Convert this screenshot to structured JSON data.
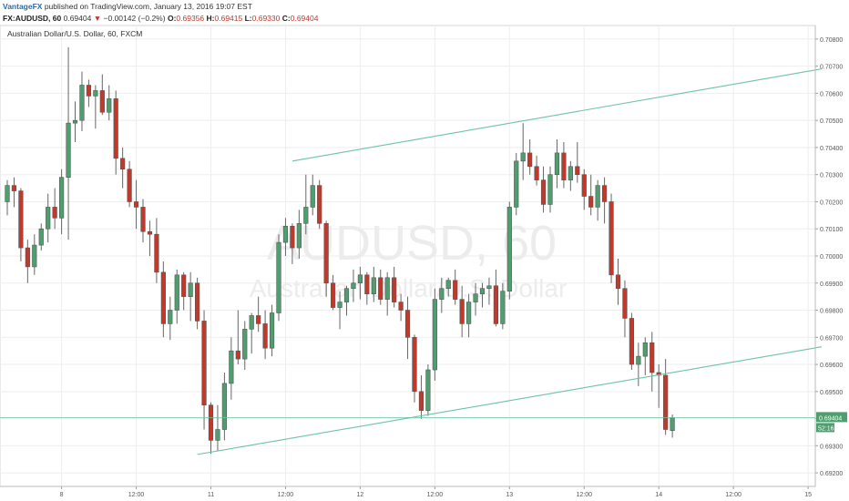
{
  "header": {
    "publisher": "VantageFX",
    "published_text": " published on TradingView.com, January 13, 2016 19:07 EST",
    "symbol": "FX:AUDUSD, 60",
    "last": "0.69404",
    "change_arrow": "▼",
    "change": "−0.00142 (−0.2%)",
    "o_label": "O:",
    "o_value": "0.69356",
    "h_label": "H:",
    "h_value": "0.69415",
    "l_label": "L:",
    "l_value": "0.69330",
    "c_label": "C:",
    "c_value": "0.69404"
  },
  "chart_data": {
    "type": "candlestick",
    "title": "Australian Dollar/U.S. Dollar, 60, FXCM",
    "watermark": {
      "symbol": "AUDUSD, 60",
      "name": "Australian Dollar/U.S. Dollar"
    },
    "ylim": [
      0.6915,
      0.7085
    ],
    "y_ticks": [
      "0.69200",
      "0.69300",
      "0.69400",
      "0.69500",
      "0.69600",
      "0.69700",
      "0.69800",
      "0.69900",
      "0.70000",
      "0.70100",
      "0.70200",
      "0.70300",
      "0.70400",
      "0.70500",
      "0.70600",
      "0.70700",
      "0.70800"
    ],
    "x_ticks": [
      {
        "label": "8",
        "index": 8
      },
      {
        "label": "12:00",
        "index": 19
      },
      {
        "label": "11",
        "index": 30
      },
      {
        "label": "12:00",
        "index": 41
      },
      {
        "label": "12",
        "index": 52
      },
      {
        "label": "12:00",
        "index": 63
      },
      {
        "label": "13",
        "index": 74
      },
      {
        "label": "12:00",
        "index": 85
      },
      {
        "label": "14",
        "index": 96
      },
      {
        "label": "12:00",
        "index": 107
      },
      {
        "label": "15",
        "index": 118
      }
    ],
    "last_price": "0.69404",
    "countdown": "52:16",
    "bull_color": "#4f9e6f",
    "bear_color": "#c0392b",
    "channel_color": "#6cc3a4",
    "trendlines": [
      {
        "from": [
          42,
          0.7035
        ],
        "to": [
          120,
          0.7069
        ]
      },
      {
        "from": [
          28,
          0.69268
        ],
        "to": [
          120,
          0.69665
        ]
      }
    ],
    "candles": [
      [
        0.702,
        0.7028,
        0.7015,
        0.7026
      ],
      [
        0.7026,
        0.7029,
        0.7018,
        0.7024
      ],
      [
        0.7024,
        0.7025,
        0.6998,
        0.7003
      ],
      [
        0.7003,
        0.7006,
        0.699,
        0.6996
      ],
      [
        0.6996,
        0.7008,
        0.6993,
        0.7004
      ],
      [
        0.7004,
        0.7012,
        0.7002,
        0.701
      ],
      [
        0.701,
        0.7023,
        0.7005,
        0.7018
      ],
      [
        0.7018,
        0.7025,
        0.701,
        0.7014
      ],
      [
        0.7014,
        0.7032,
        0.7008,
        0.7029
      ],
      [
        0.7029,
        0.7077,
        0.7006,
        0.7049
      ],
      [
        0.7049,
        0.7057,
        0.7042,
        0.705
      ],
      [
        0.705,
        0.7068,
        0.7046,
        0.7063
      ],
      [
        0.7063,
        0.7065,
        0.7055,
        0.7059
      ],
      [
        0.7059,
        0.7063,
        0.7047,
        0.7061
      ],
      [
        0.7061,
        0.7067,
        0.7052,
        0.7053
      ],
      [
        0.7053,
        0.7063,
        0.705,
        0.7058
      ],
      [
        0.7058,
        0.7061,
        0.703,
        0.7036
      ],
      [
        0.7036,
        0.704,
        0.7025,
        0.7032
      ],
      [
        0.7032,
        0.7035,
        0.7018,
        0.702
      ],
      [
        0.702,
        0.7028,
        0.701,
        0.7018
      ],
      [
        0.7018,
        0.7021,
        0.7005,
        0.7009
      ],
      [
        0.7009,
        0.7013,
        0.7,
        0.7008
      ],
      [
        0.7008,
        0.7014,
        0.699,
        0.6994
      ],
      [
        0.6994,
        0.6998,
        0.697,
        0.6975
      ],
      [
        0.6975,
        0.6985,
        0.6969,
        0.698
      ],
      [
        0.698,
        0.6995,
        0.6975,
        0.6993
      ],
      [
        0.6993,
        0.6994,
        0.698,
        0.6985
      ],
      [
        0.6985,
        0.6994,
        0.6976,
        0.699
      ],
      [
        0.699,
        0.6992,
        0.6973,
        0.6976
      ],
      [
        0.6976,
        0.698,
        0.6936,
        0.6945
      ],
      [
        0.6945,
        0.6946,
        0.6927,
        0.6932
      ],
      [
        0.6932,
        0.6945,
        0.6928,
        0.6936
      ],
      [
        0.6936,
        0.6957,
        0.6932,
        0.6953
      ],
      [
        0.6953,
        0.697,
        0.6947,
        0.6965
      ],
      [
        0.6965,
        0.698,
        0.696,
        0.6962
      ],
      [
        0.6962,
        0.6976,
        0.6958,
        0.6973
      ],
      [
        0.6973,
        0.6979,
        0.6964,
        0.6978
      ],
      [
        0.6978,
        0.6985,
        0.6972,
        0.6975
      ],
      [
        0.6975,
        0.698,
        0.6962,
        0.6966
      ],
      [
        0.6966,
        0.6982,
        0.6963,
        0.6979
      ],
      [
        0.6979,
        0.7008,
        0.6976,
        0.7005
      ],
      [
        0.7005,
        0.7014,
        0.7,
        0.7011
      ],
      [
        0.7011,
        0.7012,
        0.6997,
        0.7003
      ],
      [
        0.7003,
        0.7017,
        0.6999,
        0.7012
      ],
      [
        0.7012,
        0.703,
        0.7008,
        0.7018
      ],
      [
        0.7018,
        0.703,
        0.7015,
        0.7026
      ],
      [
        0.7026,
        0.7028,
        0.701,
        0.7012
      ],
      [
        0.7012,
        0.7013,
        0.6985,
        0.699
      ],
      [
        0.699,
        0.6993,
        0.698,
        0.6981
      ],
      [
        0.6981,
        0.6987,
        0.6973,
        0.6983
      ],
      [
        0.6983,
        0.6989,
        0.6978,
        0.6988
      ],
      [
        0.6988,
        0.6995,
        0.6983,
        0.699
      ],
      [
        0.699,
        0.6996,
        0.6984,
        0.6993
      ],
      [
        0.6993,
        0.6994,
        0.6982,
        0.6986
      ],
      [
        0.6986,
        0.6996,
        0.6983,
        0.6992
      ],
      [
        0.6992,
        0.6995,
        0.6982,
        0.6984
      ],
      [
        0.6984,
        0.6994,
        0.6978,
        0.6992
      ],
      [
        0.6992,
        0.6996,
        0.6981,
        0.6983
      ],
      [
        0.6983,
        0.6986,
        0.6976,
        0.698
      ],
      [
        0.698,
        0.6985,
        0.6962,
        0.697
      ],
      [
        0.697,
        0.6971,
        0.6946,
        0.695
      ],
      [
        0.695,
        0.6956,
        0.694,
        0.6943
      ],
      [
        0.6943,
        0.696,
        0.6941,
        0.6958
      ],
      [
        0.6958,
        0.6988,
        0.6954,
        0.6984
      ],
      [
        0.6984,
        0.6992,
        0.6979,
        0.6988
      ],
      [
        0.6988,
        0.6992,
        0.6985,
        0.6991
      ],
      [
        0.6991,
        0.6995,
        0.6982,
        0.6984
      ],
      [
        0.6984,
        0.6989,
        0.697,
        0.6975
      ],
      [
        0.6975,
        0.6986,
        0.697,
        0.6983
      ],
      [
        0.6983,
        0.699,
        0.6978,
        0.6986
      ],
      [
        0.6986,
        0.699,
        0.6981,
        0.6988
      ],
      [
        0.6988,
        0.6992,
        0.6982,
        0.6989
      ],
      [
        0.6989,
        0.6995,
        0.6974,
        0.6975
      ],
      [
        0.6975,
        0.699,
        0.6973,
        0.6987
      ],
      [
        0.6987,
        0.702,
        0.6984,
        0.7018
      ],
      [
        0.7018,
        0.7038,
        0.7015,
        0.7035
      ],
      [
        0.7035,
        0.7049,
        0.7028,
        0.7038
      ],
      [
        0.7038,
        0.7043,
        0.703,
        0.7033
      ],
      [
        0.7033,
        0.7037,
        0.7026,
        0.7028
      ],
      [
        0.7028,
        0.7033,
        0.7016,
        0.7019
      ],
      [
        0.7019,
        0.7033,
        0.7016,
        0.703
      ],
      [
        0.703,
        0.7043,
        0.7025,
        0.7038
      ],
      [
        0.7038,
        0.7042,
        0.7025,
        0.7028
      ],
      [
        0.7028,
        0.7035,
        0.7024,
        0.7033
      ],
      [
        0.7033,
        0.7042,
        0.7027,
        0.703
      ],
      [
        0.703,
        0.7032,
        0.7017,
        0.7022
      ],
      [
        0.7022,
        0.703,
        0.7015,
        0.7018
      ],
      [
        0.7018,
        0.7028,
        0.7013,
        0.7026
      ],
      [
        0.7026,
        0.7029,
        0.7012,
        0.702
      ],
      [
        0.702,
        0.7023,
        0.699,
        0.6993
      ],
      [
        0.6993,
        0.6999,
        0.6982,
        0.6988
      ],
      [
        0.6988,
        0.6991,
        0.697,
        0.6977
      ],
      [
        0.6977,
        0.6979,
        0.6958,
        0.696
      ],
      [
        0.696,
        0.6968,
        0.6952,
        0.6963
      ],
      [
        0.6963,
        0.697,
        0.6956,
        0.6968
      ],
      [
        0.6968,
        0.6972,
        0.695,
        0.6957
      ],
      [
        0.6957,
        0.696,
        0.6944,
        0.6956
      ],
      [
        0.6956,
        0.6962,
        0.6934,
        0.6936
      ],
      [
        0.69356,
        0.69415,
        0.6933,
        0.69404
      ]
    ]
  }
}
